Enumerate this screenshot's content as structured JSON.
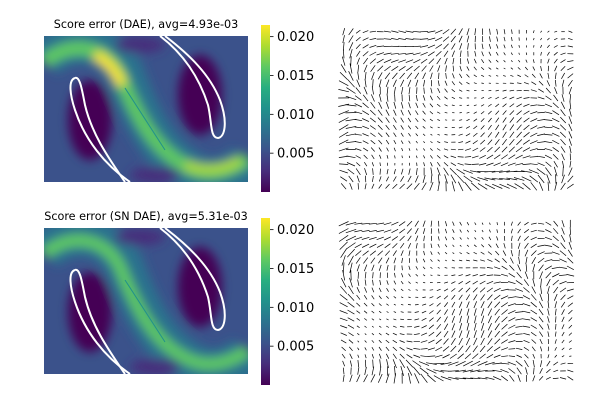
{
  "chart_data": [
    {
      "type": "heatmap",
      "title": "Score error (DAE), avg=4.93e-03",
      "colormap": "viridis",
      "colorbar": {
        "range": [
          0,
          0.0215
        ],
        "ticks": [
          "0.005",
          "0.010",
          "0.015",
          "0.020"
        ],
        "tick_values": [
          0.005,
          0.01,
          0.015,
          0.02
        ]
      },
      "avg_error": 0.00493,
      "overlay": "white two-moons outline curves",
      "axes": "hidden"
    },
    {
      "type": "vector-field",
      "title": "",
      "color": "#000000",
      "axes": "hidden"
    },
    {
      "type": "heatmap",
      "title": "Score error (SN DAE), avg=5.31e-03",
      "colormap": "viridis",
      "colorbar": {
        "range": [
          0,
          0.0215
        ],
        "ticks": [
          "0.005",
          "0.010",
          "0.015",
          "0.020"
        ],
        "tick_values": [
          0.005,
          0.01,
          0.015,
          0.02
        ]
      },
      "avg_error": 0.00531,
      "overlay": "white two-moons outline curves",
      "axes": "hidden"
    },
    {
      "type": "vector-field",
      "title": "",
      "color": "#000000",
      "axes": "hidden"
    }
  ]
}
